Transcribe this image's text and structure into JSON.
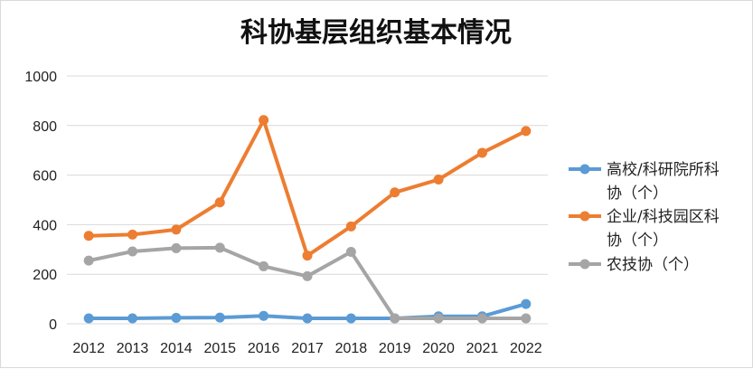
{
  "chart_data": {
    "type": "line",
    "title": "科协基层组织基本情况",
    "xlabel": "",
    "ylabel": "",
    "x": [
      "2012",
      "2013",
      "2014",
      "2015",
      "2016",
      "2017",
      "2018",
      "2019",
      "2020",
      "2021",
      "2022"
    ],
    "ylim": [
      0,
      1000
    ],
    "yticks": [
      0,
      200,
      400,
      600,
      800,
      1000
    ],
    "grid": true,
    "legend_position": "right",
    "series": [
      {
        "name_lines": [
          "高校/科研院所科",
          "协（个）"
        ],
        "color": "#5b9bd5",
        "values": [
          22,
          22,
          24,
          25,
          32,
          22,
          22,
          22,
          30,
          30,
          80
        ]
      },
      {
        "name_lines": [
          "企业/科技园区科",
          "协（个）"
        ],
        "color": "#ed7d31",
        "values": [
          355,
          360,
          380,
          490,
          822,
          275,
          393,
          530,
          582,
          690,
          778
        ]
      },
      {
        "name_lines": [
          "农技协（个）"
        ],
        "color": "#a5a5a5",
        "values": [
          255,
          292,
          305,
          307,
          232,
          192,
          290,
          22,
          22,
          22,
          22
        ]
      }
    ]
  }
}
